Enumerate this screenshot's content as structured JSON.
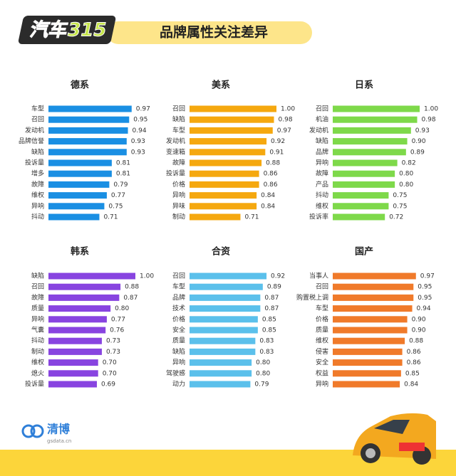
{
  "header": {
    "logo": "汽车315",
    "title": "品牌属性关注差异"
  },
  "footer": {
    "brand": "清博",
    "site": "gsdata.cn"
  },
  "chart_data": [
    {
      "type": "hbar",
      "title": "德系",
      "color": "#1a8fe3",
      "xlim": [
        0.3,
        1
      ],
      "categories": [
        "车型",
        "召回",
        "发动机",
        "品牌信誉",
        "缺陷",
        "投诉量",
        "增多",
        "故障",
        "维权",
        "异响",
        "抖动"
      ],
      "values": [
        0.97,
        0.95,
        0.94,
        0.93,
        0.93,
        0.81,
        0.81,
        0.79,
        0.77,
        0.75,
        0.71
      ],
      "value_labels": [
        "0.97",
        "0.95",
        "0.94",
        "0.93",
        "0.93",
        "0.81",
        "0.81",
        "0.79",
        "0.77",
        "0.75",
        "0.71"
      ]
    },
    {
      "type": "hbar",
      "title": "美系",
      "color": "#f5a80f",
      "xlim": [
        0.3,
        1
      ],
      "categories": [
        "召回",
        "缺陷",
        "车型",
        "发动机",
        "变速箱",
        "故障",
        "投诉量",
        "价格",
        "异响",
        "异味",
        "制动"
      ],
      "values": [
        1,
        0.98,
        0.97,
        0.92,
        0.91,
        0.88,
        0.86,
        0.86,
        0.84,
        0.84,
        0.71
      ],
      "value_labels": [
        "1.00",
        "0.98",
        "0.97",
        "0.92",
        "0.91",
        "0.88",
        "0.86",
        "0.86",
        "0.84",
        "0.84",
        "0.71"
      ]
    },
    {
      "type": "hbar",
      "title": "日系",
      "color": "#7ed94a",
      "xlim": [
        0.3,
        1
      ],
      "categories": [
        "召回",
        "机油",
        "发动机",
        "缺陷",
        "品牌",
        "异响",
        "故障",
        "产品",
        "抖动",
        "维权",
        "投诉率"
      ],
      "values": [
        1,
        0.98,
        0.93,
        0.9,
        0.89,
        0.82,
        0.8,
        0.8,
        0.75,
        0.75,
        0.72
      ],
      "value_labels": [
        "1.00",
        "0.98",
        "0.93",
        "0.90",
        "0.89",
        "0.82",
        "0.80",
        "0.80",
        "0.75",
        "0.75",
        "0.72"
      ]
    },
    {
      "type": "hbar",
      "title": "韩系",
      "color": "#8844e0",
      "xlim": [
        0.3,
        1
      ],
      "categories": [
        "缺陷",
        "召回",
        "故障",
        "质量",
        "异响",
        "气囊",
        "抖动",
        "制动",
        "维权",
        "熄火",
        "投诉量"
      ],
      "values": [
        1,
        0.88,
        0.87,
        0.8,
        0.77,
        0.76,
        0.73,
        0.73,
        0.7,
        0.7,
        0.69
      ],
      "value_labels": [
        "1.00",
        "0.88",
        "0.87",
        "0.80",
        "0.77",
        "0.76",
        "0.73",
        "0.73",
        "0.70",
        "0.70",
        "0.69"
      ]
    },
    {
      "type": "hbar",
      "title": "合资",
      "color": "#5bc0eb",
      "xlim": [
        0.3,
        1
      ],
      "categories": [
        "召回",
        "车型",
        "品牌",
        "技术",
        "价格",
        "安全",
        "质量",
        "缺陷",
        "异响",
        "驾驶感",
        "动力"
      ],
      "values": [
        0.92,
        0.89,
        0.87,
        0.87,
        0.85,
        0.85,
        0.83,
        0.83,
        0.8,
        0.8,
        0.79
      ],
      "value_labels": [
        "0.92",
        "0.89",
        "0.87",
        "0.87",
        "0.85",
        "0.85",
        "0.83",
        "0.83",
        "0.80",
        "0.80",
        "0.79"
      ]
    },
    {
      "type": "hbar",
      "title": "国产",
      "color": "#f07a2a",
      "xlim": [
        0.3,
        1
      ],
      "categories": [
        "当事人",
        "召回",
        "购置税上调",
        "车型",
        "价格",
        "质量",
        "维权",
        "侵害",
        "安全",
        "权益",
        "异响"
      ],
      "values": [
        0.97,
        0.95,
        0.95,
        0.94,
        0.9,
        0.9,
        0.88,
        0.86,
        0.86,
        0.85,
        0.84
      ],
      "value_labels": [
        "0.97",
        "0.95",
        "0.95",
        "0.94",
        "0.90",
        "0.90",
        "0.88",
        "0.86",
        "0.86",
        "0.85",
        "0.84"
      ]
    }
  ]
}
